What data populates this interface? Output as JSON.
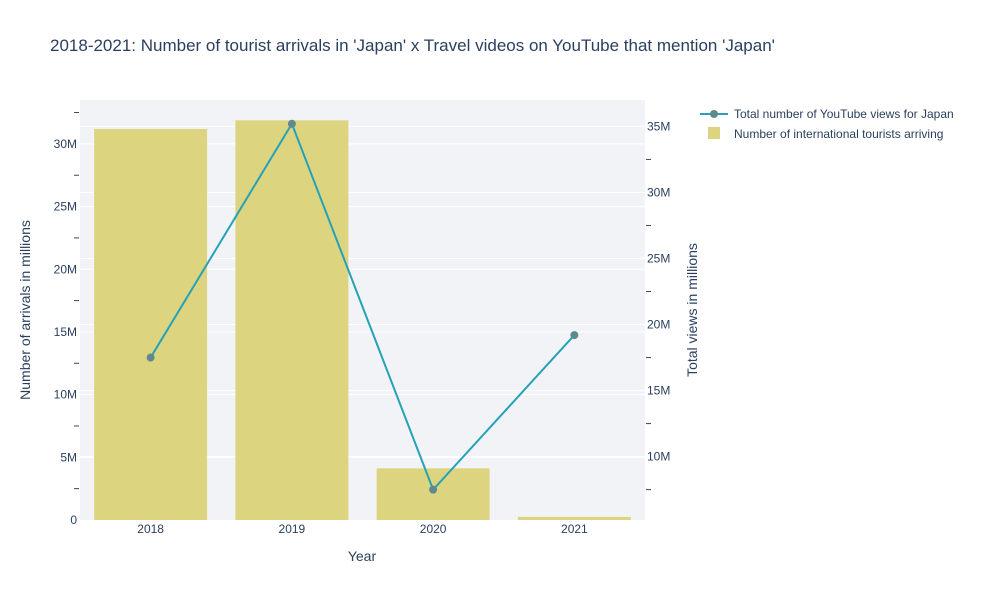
{
  "chart_data": {
    "type": "bar+line",
    "title": "2018-2021: Number of tourist arrivals in 'Japan' x Travel videos on YouTube that mention 'Japan'",
    "xlabel": "Year",
    "ylabel_left": "Number of arrivals in millions",
    "ylabel_right": "Total views in millions",
    "categories": [
      "2018",
      "2019",
      "2020",
      "2021"
    ],
    "ylim_left": [
      0,
      33500000
    ],
    "ylim_right": [
      5200000,
      37000000
    ],
    "left_ticks": [
      {
        "value": 0,
        "label": "0"
      },
      {
        "value": 5000000,
        "label": "5M"
      },
      {
        "value": 10000000,
        "label": "10M"
      },
      {
        "value": 15000000,
        "label": "15M"
      },
      {
        "value": 20000000,
        "label": "20M"
      },
      {
        "value": 25000000,
        "label": "25M"
      },
      {
        "value": 30000000,
        "label": "30M"
      }
    ],
    "right_ticks": [
      {
        "value": 10000000,
        "label": "10M"
      },
      {
        "value": 15000000,
        "label": "15M"
      },
      {
        "value": 20000000,
        "label": "20M"
      },
      {
        "value": 25000000,
        "label": "25M"
      },
      {
        "value": 30000000,
        "label": "30M"
      },
      {
        "value": 35000000,
        "label": "35M"
      }
    ],
    "series": [
      {
        "name": "Number of international tourists arriving",
        "kind": "bar",
        "axis": "left",
        "color": "#ddd480",
        "values": [
          31190000,
          31880000,
          4120000,
          245000
        ]
      },
      {
        "name": "Total number of YouTube views for Japan",
        "kind": "line",
        "axis": "right",
        "color": "#26a2b6",
        "marker_color": "#5e8a8e",
        "values": [
          17500000,
          35200000,
          7500000,
          19200000
        ]
      }
    ],
    "legend_position": "top-right",
    "grid": true,
    "plot_background": "#f2f3f7"
  }
}
